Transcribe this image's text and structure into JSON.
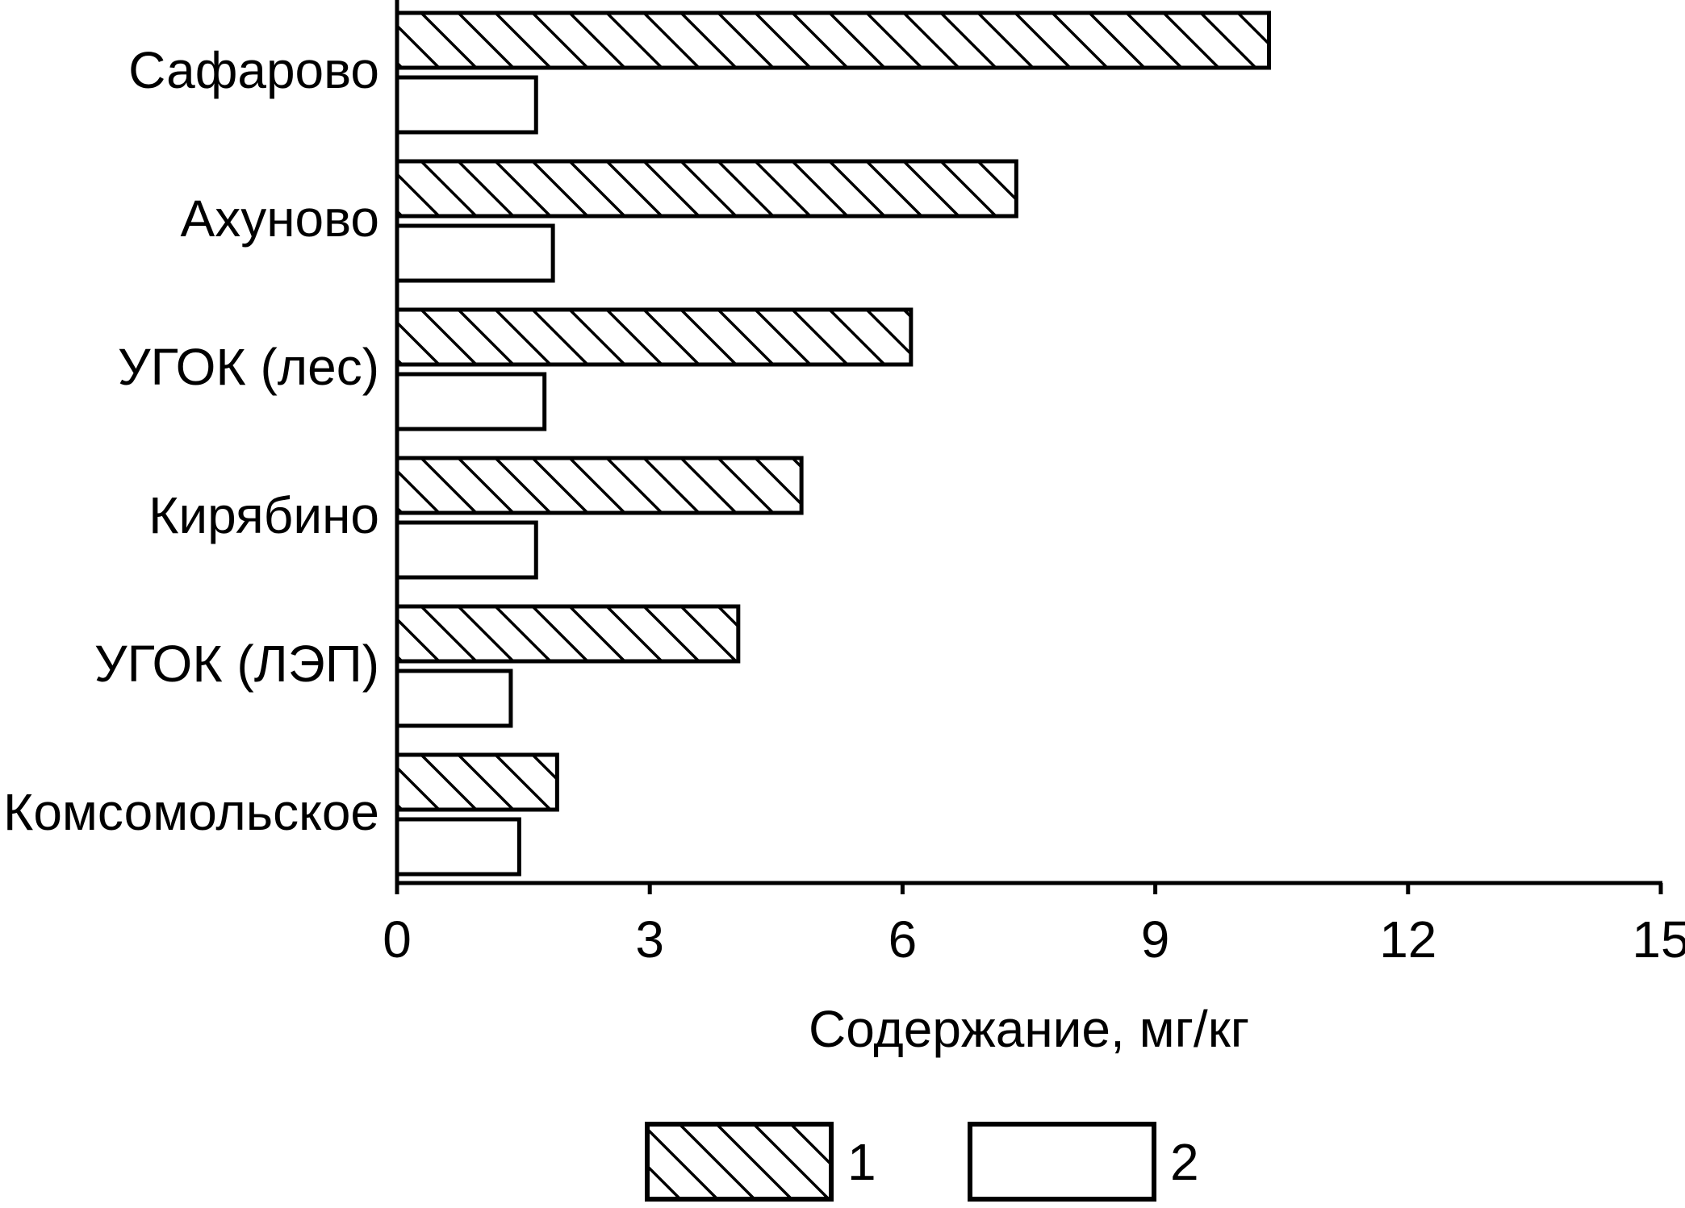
{
  "chart_data": {
    "type": "bar",
    "orientation": "horizontal",
    "categories": [
      "Сафарово",
      "Ахуново",
      "УГОК (лес)",
      "Кирябино",
      "УГОК (ЛЭП)",
      "Комсомольское"
    ],
    "series": [
      {
        "name": "1",
        "values": [
          10.35,
          7.35,
          6.1,
          4.8,
          4.05,
          1.9
        ],
        "pattern": "hatched"
      },
      {
        "name": "2",
        "values": [
          1.65,
          1.85,
          1.75,
          1.65,
          1.35,
          1.45
        ],
        "pattern": "empty"
      }
    ],
    "xlabel": "Содержание, мг/кг",
    "xlim": [
      0,
      15
    ],
    "xticks": [
      0,
      3,
      6,
      9,
      12,
      15
    ],
    "grid": false,
    "legend_position": "bottom-center",
    "colors": {
      "stroke": "#000000",
      "fill": "#ffffff"
    }
  }
}
